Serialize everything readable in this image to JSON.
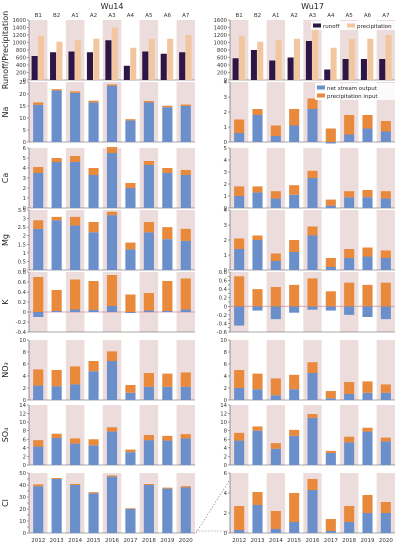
{
  "figure": {
    "panel_titles": [
      "Wu14",
      "Wu17"
    ],
    "season_labels": [
      "B1",
      "B2",
      "A1",
      "A2",
      "A3",
      "A4",
      "A5",
      "A6",
      "A7"
    ],
    "years": [
      "2012",
      "2013",
      "2014",
      "2015",
      "2016",
      "2017",
      "2018",
      "2019",
      "2020"
    ],
    "shaded_columns": [
      0,
      2,
      4,
      6,
      8
    ],
    "colors": {
      "runoff": "#2d1646",
      "precipitation": "#f2c7a0",
      "net_stream_output": "#6b8fcb",
      "precipitation_input": "#e8893b",
      "shade": "#ecdcdc",
      "zero_line": "#d98c8c",
      "axis": "#555555"
    }
  },
  "chart_data": [
    {
      "type": "bar",
      "ylabel": "Runoff/Precipitation",
      "legend": {
        "position": "top-right",
        "entries": [
          "runoff",
          "precipitation"
        ]
      },
      "panels": [
        {
          "title": "Wu14",
          "ylim": [
            0,
            1600
          ],
          "yticks": [
            0,
            200,
            400,
            600,
            800,
            1000,
            1200,
            1400,
            1600
          ],
          "series": [
            {
              "name": "runoff",
              "values": [
                640,
                740,
                760,
                740,
                1060,
                380,
                760,
                700,
                740
              ]
            },
            {
              "name": "precipitation",
              "values": [
                1180,
                1020,
                1060,
                1100,
                1400,
                860,
                1100,
                1100,
                1200
              ]
            }
          ]
        },
        {
          "title": "Wu17",
          "ylim": [
            0,
            1600
          ],
          "yticks": [
            0,
            200,
            400,
            600,
            800,
            1000,
            1200,
            1400,
            1600
          ],
          "series": [
            {
              "name": "runoff",
              "values": [
                580,
                800,
                520,
                600,
                1040,
                280,
                560,
                560,
                560
              ]
            },
            {
              "name": "precipitation",
              "values": [
                1180,
                1020,
                1060,
                1100,
                1400,
                860,
                1100,
                1100,
                1200
              ]
            }
          ]
        }
      ]
    },
    {
      "type": "bar",
      "stacked": true,
      "ylabel": "Na",
      "legend": {
        "position": "top-right",
        "entries": [
          "net stream output",
          "precipitation input"
        ]
      },
      "panels": [
        {
          "ylim": [
            0,
            25
          ],
          "yticks": [
            0,
            5,
            10,
            15,
            20,
            25
          ],
          "series": [
            {
              "name": "net stream output",
              "values": [
                15.5,
                21.5,
                20.5,
                16.5,
                23.5,
                9,
                16.5,
                14.5,
                15
              ]
            },
            {
              "name": "precipitation input",
              "values": [
                1,
                0.5,
                0.6,
                0.7,
                0.5,
                0.5,
                0.6,
                0.6,
                0.6
              ]
            }
          ]
        },
        {
          "ylim": [
            0,
            4
          ],
          "yticks": [
            0,
            1,
            2,
            3,
            4
          ],
          "series": [
            {
              "name": "net stream output",
              "values": [
                0.6,
                1.8,
                0.4,
                1.1,
                2.2,
                -0.1,
                0.5,
                0.9,
                0.7
              ]
            },
            {
              "name": "precipitation input",
              "values": [
                0.9,
                0.4,
                0.7,
                1.1,
                0.7,
                0.9,
                1.3,
                0.9,
                0.7
              ]
            }
          ]
        }
      ]
    },
    {
      "type": "bar",
      "stacked": true,
      "ylabel": "Ca",
      "panels": [
        {
          "ylim": [
            0,
            6
          ],
          "yticks": [
            0,
            1,
            2,
            3,
            4,
            5,
            6
          ],
          "series": [
            {
              "name": "net stream output",
              "values": [
                3.5,
                4.6,
                4.6,
                3.3,
                5.5,
                2.0,
                4.3,
                3.5,
                3.3
              ]
            },
            {
              "name": "precipitation input",
              "values": [
                0.6,
                0.4,
                0.6,
                0.7,
                0.6,
                0.5,
                0.4,
                0.5,
                0.5
              ]
            }
          ]
        },
        {
          "ylim": [
            0,
            5
          ],
          "yticks": [
            0,
            1,
            2,
            3,
            4,
            5
          ],
          "series": [
            {
              "name": "net stream output",
              "values": [
                1.0,
                1.3,
                0.8,
                1.1,
                2.5,
                0.2,
                0.9,
                0.9,
                0.8
              ]
            },
            {
              "name": "precipitation input",
              "values": [
                0.8,
                0.5,
                0.6,
                0.8,
                0.6,
                0.5,
                0.5,
                0.6,
                0.6
              ]
            }
          ]
        }
      ]
    },
    {
      "type": "bar",
      "stacked": true,
      "ylabel": "Mg",
      "panels": [
        {
          "ylim": [
            0,
            3.5
          ],
          "yticks": [
            0,
            0.5,
            1,
            1.5,
            2,
            2.5,
            3,
            3.5
          ],
          "series": [
            {
              "name": "net stream output",
              "values": [
                2.4,
                2.9,
                2.6,
                2.2,
                3.2,
                1.2,
                2.2,
                1.8,
                1.7
              ]
            },
            {
              "name": "precipitation input",
              "values": [
                0.5,
                0.2,
                0.5,
                0.6,
                0.2,
                0.4,
                0.6,
                0.7,
                0.7
              ]
            }
          ]
        },
        {
          "ylim": [
            0,
            4
          ],
          "yticks": [
            0,
            1,
            2,
            3,
            4
          ],
          "series": [
            {
              "name": "net stream output",
              "values": [
                1.4,
                2.0,
                0.6,
                1.2,
                2.3,
                0.2,
                0.8,
                0.9,
                0.8
              ]
            },
            {
              "name": "precipitation input",
              "values": [
                0.7,
                0.3,
                0.5,
                0.8,
                0.6,
                0.6,
                0.6,
                0.6,
                0.5
              ]
            }
          ]
        }
      ]
    },
    {
      "type": "bar",
      "stacked": true,
      "ylabel": "K",
      "panels": [
        {
          "ylim": [
            -0.4,
            0.8
          ],
          "yticks": [
            -0.4,
            -0.2,
            0,
            0.2,
            0.4,
            0.6,
            0.8
          ],
          "series": [
            {
              "name": "net stream output",
              "values": [
                -0.1,
                0.02,
                0.05,
                0.04,
                0.12,
                -0.02,
                0.03,
                0.02,
                0.05
              ]
            },
            {
              "name": "precipitation input",
              "values": [
                0.7,
                0.42,
                0.6,
                0.58,
                0.62,
                0.35,
                0.35,
                0.6,
                0.62
              ]
            }
          ]
        },
        {
          "ylim": [
            -0.6,
            0.8
          ],
          "yticks": [
            -0.6,
            -0.5,
            -0.4,
            -0.3,
            -0.2,
            -0.1,
            0,
            0.1,
            0.2,
            0.3,
            0.4,
            0.5,
            0.6,
            0.7,
            0.8
          ],
          "series": [
            {
              "name": "net stream output",
              "values": [
                -0.45,
                -0.1,
                -0.3,
                -0.15,
                -0.08,
                -0.1,
                -0.2,
                -0.25,
                -0.3
              ]
            },
            {
              "name": "precipitation input",
              "values": [
                0.7,
                0.4,
                0.45,
                0.5,
                0.65,
                0.35,
                0.55,
                0.5,
                0.55
              ]
            }
          ]
        }
      ]
    },
    {
      "type": "bar",
      "stacked": true,
      "ylabel": "NO₃",
      "panels": [
        {
          "ylim": [
            0,
            10
          ],
          "yticks": [
            0,
            2,
            4,
            6,
            8,
            10
          ],
          "series": [
            {
              "name": "net stream output",
              "values": [
                2.4,
                2.3,
                2.6,
                4.8,
                6.5,
                1.2,
                2.2,
                2.2,
                2.2
              ]
            },
            {
              "name": "precipitation input",
              "values": [
                2.7,
                2.7,
                3.0,
                1.7,
                1.6,
                1.3,
                2.3,
                2.2,
                2.4
              ]
            }
          ]
        },
        {
          "ylim": [
            0,
            10
          ],
          "yticks": [
            0,
            2,
            4,
            6,
            8,
            10
          ],
          "series": [
            {
              "name": "net stream output",
              "values": [
                2.0,
                1.8,
                0.8,
                1.8,
                4.5,
                0.3,
                1.0,
                1.2,
                1.2
              ]
            },
            {
              "name": "precipitation input",
              "values": [
                3.0,
                2.6,
                2.8,
                2.4,
                1.8,
                1.2,
                2.0,
                1.9,
                1.4
              ]
            }
          ]
        }
      ]
    },
    {
      "type": "bar",
      "stacked": true,
      "ylabel": "SO₄",
      "panels": [
        {
          "ylim": [
            0,
            14
          ],
          "yticks": [
            0,
            2,
            4,
            6,
            8,
            10,
            12,
            14
          ],
          "series": [
            {
              "name": "net stream output",
              "values": [
                4.3,
                6.3,
                5.0,
                4.6,
                7.8,
                3.0,
                5.8,
                5.7,
                6.2
              ]
            },
            {
              "name": "precipitation input",
              "values": [
                1.5,
                1.0,
                1.2,
                1.4,
                1.0,
                0.6,
                1.2,
                1.1,
                1.0
              ]
            }
          ]
        },
        {
          "ylim": [
            0,
            14
          ],
          "yticks": [
            0,
            2,
            4,
            6,
            8,
            10,
            12,
            14
          ],
          "series": [
            {
              "name": "net stream output",
              "values": [
                5.7,
                8.0,
                3.8,
                6.8,
                11.0,
                2.8,
                5.3,
                7.8,
                5.5
              ]
            },
            {
              "name": "precipitation input",
              "values": [
                1.8,
                1.0,
                1.3,
                1.4,
                0.9,
                0.5,
                1.3,
                0.9,
                0.9
              ]
            }
          ]
        }
      ]
    },
    {
      "type": "bar",
      "stacked": true,
      "ylabel": "Cl",
      "panels": [
        {
          "ylim": [
            0,
            50
          ],
          "yticks": [
            0,
            5,
            10,
            15,
            20,
            25,
            30,
            35,
            40,
            45,
            50
          ],
          "series": [
            {
              "name": "net stream output",
              "values": [
                39,
                45,
                40,
                33,
                47,
                20,
                40,
                37,
                38
              ]
            },
            {
              "name": "precipitation input",
              "values": [
                1.5,
                0.8,
                0.9,
                1.0,
                1.0,
                0.6,
                0.8,
                0.8,
                1.0
              ]
            }
          ]
        },
        {
          "ylim": [
            0,
            6
          ],
          "yticks": [
            0,
            2,
            4,
            6
          ],
          "series": [
            {
              "name": "net stream output",
              "values": [
                0.3,
                2.8,
                0.4,
                1.1,
                4.3,
                0.2,
                1.1,
                2.0,
                2.0
              ]
            },
            {
              "name": "precipitation input",
              "values": [
                2.4,
                1.3,
                1.8,
                2.9,
                1.1,
                1.2,
                1.6,
                1.8,
                1.1
              ]
            }
          ]
        }
      ]
    }
  ]
}
